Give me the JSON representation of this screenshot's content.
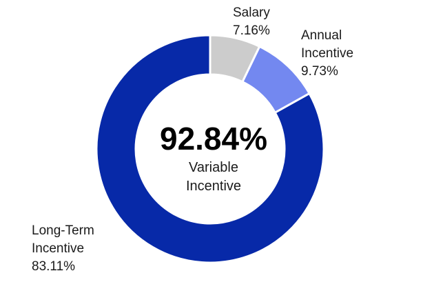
{
  "chart_data": {
    "type": "pie",
    "variant": "donut",
    "slices": [
      {
        "name": "Salary",
        "label_lines": [
          "Salary"
        ],
        "value": 7.16,
        "value_text": "7.16%",
        "color": "#cccccc"
      },
      {
        "name": "Annual Incentive",
        "label_lines": [
          "Annual",
          "Incentive"
        ],
        "value": 9.73,
        "value_text": "9.73%",
        "color": "#7388f0"
      },
      {
        "name": "Long-Term Incentive",
        "label_lines": [
          "Long-Term",
          "Incentive"
        ],
        "value": 83.11,
        "value_text": "83.11%",
        "color": "#0729a8"
      }
    ],
    "center": {
      "value_text": "92.84%",
      "caption_lines": [
        "Variable",
        "Incentive"
      ]
    },
    "start_angle": "top",
    "direction": "clockwise"
  }
}
